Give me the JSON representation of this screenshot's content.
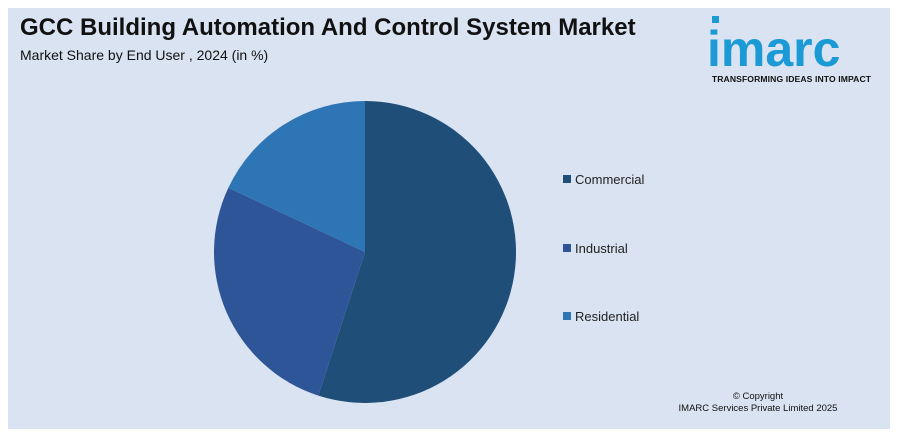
{
  "header": {
    "title": "GCC Building Automation And Control System Market",
    "subtitle": "Market Share by End User , 2024 (in %)"
  },
  "brand": {
    "logo_text": "imarc",
    "tagline": "TRANSFORMING IDEAS INTO IMPACT",
    "color": "#1b9ad6"
  },
  "chart_data": {
    "type": "pie",
    "title": "GCC Building Automation And Control System Market",
    "subtitle": "Market Share by End User , 2024 (in %)",
    "categories": [
      "Commercial",
      "Industrial",
      "Residential"
    ],
    "values": [
      55,
      27,
      18
    ],
    "colors": [
      "#1f4e79",
      "#2e5597",
      "#2e75b6"
    ],
    "legend_position": "right"
  },
  "legend": {
    "items": [
      {
        "label": "Commercial",
        "color": "#1f4e79"
      },
      {
        "label": "Industrial",
        "color": "#2e5597"
      },
      {
        "label": "Residential",
        "color": "#2e75b6"
      }
    ]
  },
  "footer": {
    "copyright_line1": "© Copyright",
    "copyright_line2": "IMARC Services Private Limited 2025"
  }
}
